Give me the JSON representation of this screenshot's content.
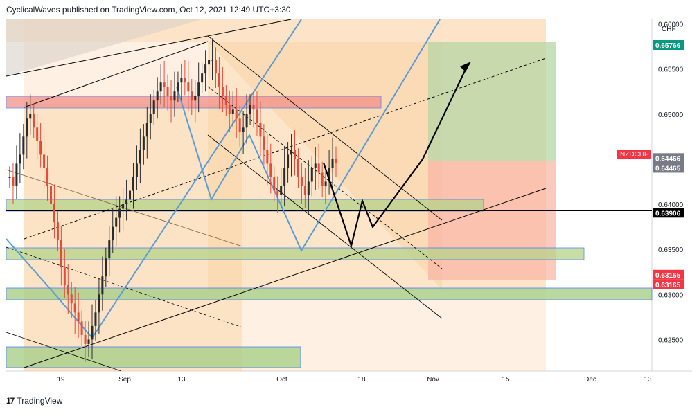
{
  "header": {
    "author": "CyclicalWaves",
    "published_text": "published on TradingView.com, Oct 12, 2021 12:49 UTC+3:30"
  },
  "footer": {
    "brand": "TradingView",
    "logo_text": "17"
  },
  "chart_data": {
    "type": "candlestick",
    "symbol": "NZDCHF",
    "currency": "CHF",
    "ylim": [
      0.6215,
      0.6605
    ],
    "y_ticks": [
      "0.66000",
      "0.65500",
      "0.65000",
      "0.64500",
      "0.64000",
      "0.63500",
      "0.63000",
      "0.62500"
    ],
    "x_ticks": [
      "19",
      "Sep",
      "13",
      "Oct",
      "18",
      "Nov",
      "15",
      "Dec",
      "13"
    ],
    "price_labels": [
      {
        "name": "target",
        "text": "0.65766",
        "value": 0.65766,
        "color": "#089981"
      },
      {
        "name": "last-price-1",
        "text": "0.64466",
        "value": 0.64466,
        "color": "#787b86"
      },
      {
        "name": "last-price-2",
        "text": "0.64465",
        "value": 0.64465,
        "color": "#787b86"
      },
      {
        "name": "horizontal-level",
        "text": "0.63906",
        "value": 0.63906,
        "color": "#000000"
      },
      {
        "name": "stop-1",
        "text": "0.63165",
        "value": 0.63165,
        "color": "#f23645"
      },
      {
        "name": "stop-2",
        "text": "0.63165",
        "value": 0.63165,
        "color": "#f23645"
      }
    ],
    "symbol_label": {
      "text": "NZDCHF",
      "value": 0.6451,
      "color": "#f23645"
    },
    "candles_approx": [
      0.643,
      0.642,
      0.6445,
      0.6455,
      0.6475,
      0.6495,
      0.65,
      0.6485,
      0.647,
      0.6455,
      0.644,
      0.642,
      0.64,
      0.638,
      0.636,
      0.633,
      0.631,
      0.63,
      0.629,
      0.628,
      0.627,
      0.6255,
      0.6245,
      0.625,
      0.6265,
      0.628,
      0.63,
      0.632,
      0.634,
      0.636,
      0.6375,
      0.6385,
      0.6395,
      0.64,
      0.6405,
      0.6415,
      0.643,
      0.6445,
      0.646,
      0.6475,
      0.649,
      0.65,
      0.6515,
      0.6525,
      0.6535,
      0.653,
      0.652,
      0.6515,
      0.6525,
      0.6535,
      0.654,
      0.6535,
      0.6525,
      0.6515,
      0.652,
      0.6535,
      0.6545,
      0.6555,
      0.656,
      0.656,
      0.6545,
      0.653,
      0.652,
      0.651,
      0.65,
      0.6505,
      0.6495,
      0.648,
      0.6485,
      0.65,
      0.651,
      0.6505,
      0.649,
      0.6475,
      0.646,
      0.6445,
      0.643,
      0.6415,
      0.641,
      0.642,
      0.644,
      0.6455,
      0.646,
      0.645,
      0.643,
      0.642,
      0.641,
      0.6425,
      0.644,
      0.6445,
      0.6435,
      0.642,
      0.6425,
      0.644,
      0.645,
      0.6446
    ]
  }
}
